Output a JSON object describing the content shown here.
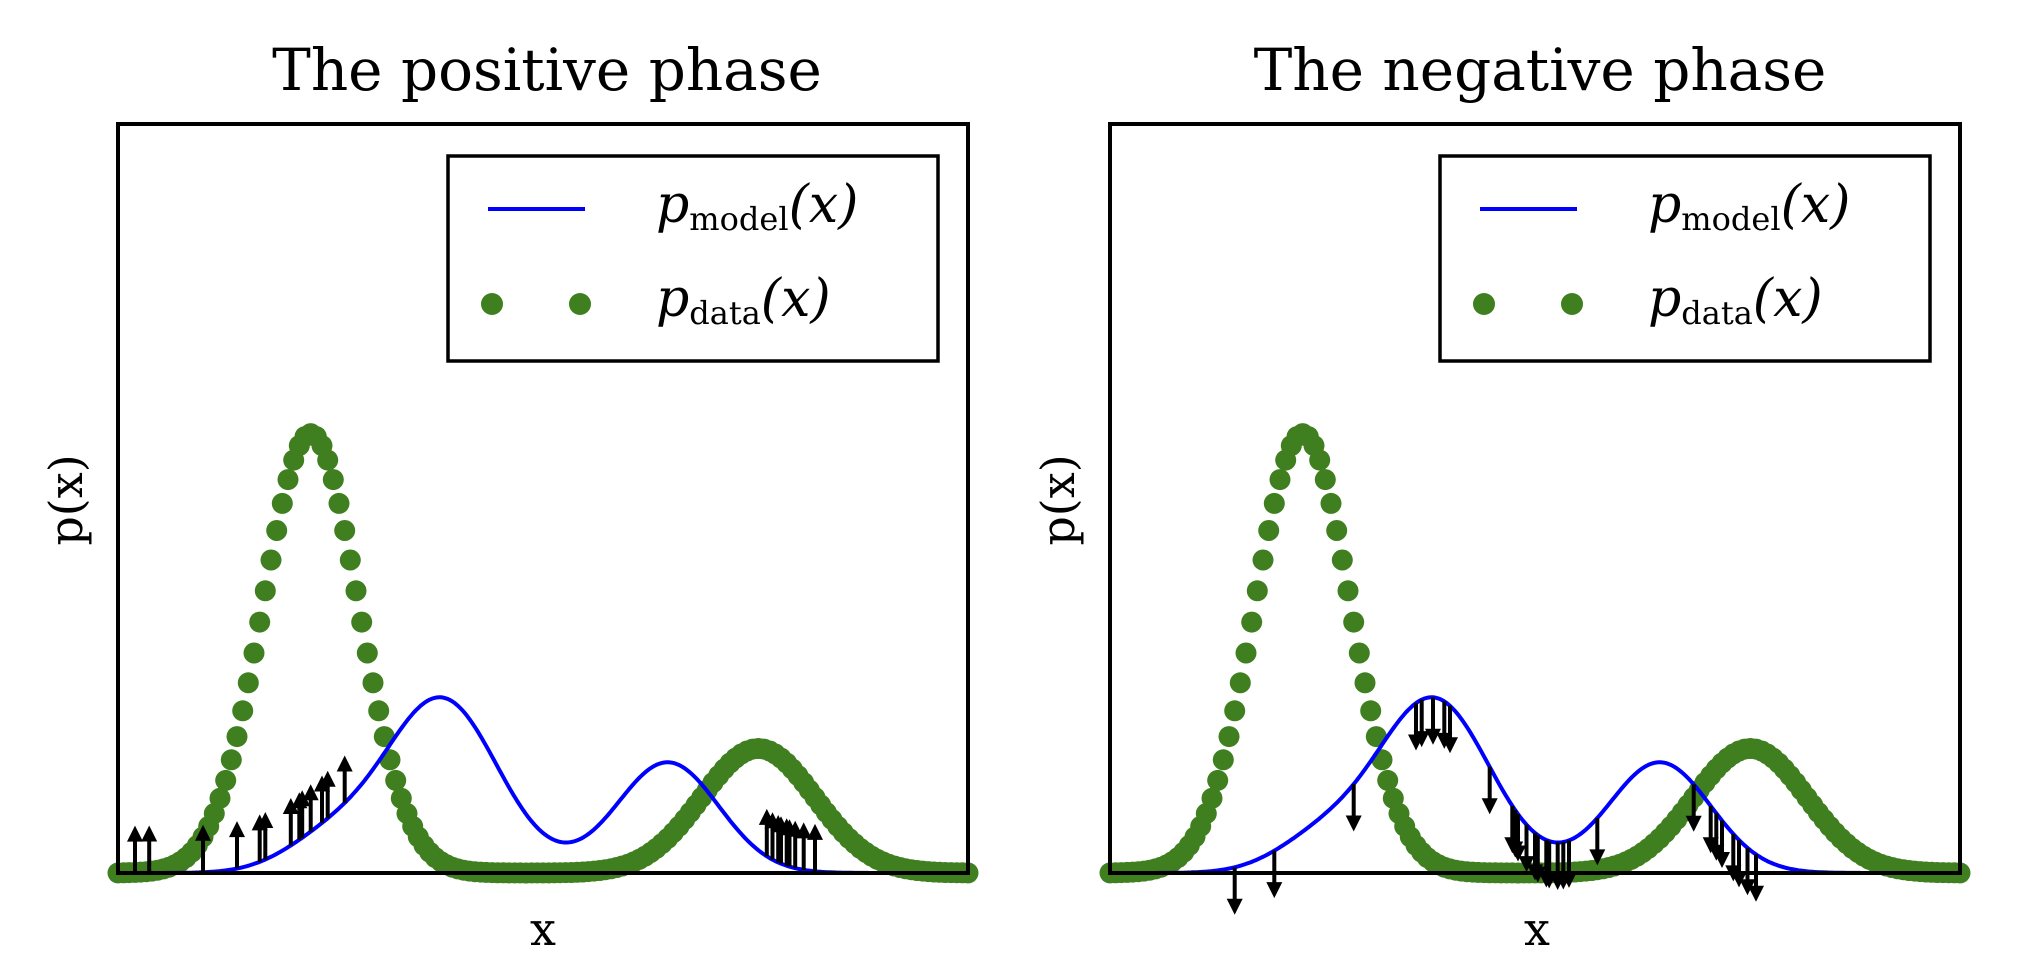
{
  "chart_data": [
    {
      "type": "line",
      "title": "The positive phase",
      "xlabel": "x",
      "ylabel": "p(x)",
      "xlim": [
        -4.5,
        10.5
      ],
      "ylim": [
        0,
        0.6
      ],
      "ticks_shown": false,
      "grid": false,
      "legend_position": "top-right",
      "legend": [
        {
          "style": "line",
          "color": "#0000ff",
          "label": "p",
          "sub": "model",
          "arg": "(x)"
        },
        {
          "style": "dots",
          "color": "#3f7f1f",
          "label": "p",
          "sub": "data",
          "arg": "(x)"
        }
      ],
      "series": [
        {
          "key": "p_model",
          "color": "#0000ff",
          "components": [
            {
              "weight": 0.35,
              "mean": 1.2,
              "sd": 1.0
            },
            {
              "weight": 0.2,
              "mean": 5.2,
              "sd": 0.9
            },
            {
              "weight": 0.05,
              "mean": -0.8,
              "sd": 0.8
            }
          ]
        },
        {
          "key": "p_data",
          "color": "#3f7f1f",
          "components": [
            {
              "weight": 0.75,
              "mean": -1.1,
              "sd": 0.85
            },
            {
              "weight": 0.25,
              "mean": 6.8,
              "sd": 1.0
            }
          ]
        }
      ],
      "arrows": {
        "direction": "up",
        "length": 0.038,
        "x": [
          -4.2,
          -3.95,
          -3.0,
          -2.4,
          -2.0,
          -1.9,
          -1.45,
          -1.3,
          -1.25,
          -1.1,
          -0.9,
          -0.8,
          -0.5,
          6.95,
          7.05,
          7.15,
          7.2,
          7.3,
          7.35,
          7.45,
          7.6,
          7.8
        ]
      }
    },
    {
      "type": "line",
      "title": "The negative phase",
      "xlabel": "x",
      "ylabel": "p(x)",
      "xlim": [
        -4.5,
        10.5
      ],
      "ylim": [
        0,
        0.6
      ],
      "ticks_shown": false,
      "grid": false,
      "legend_position": "top-right",
      "legend": [
        {
          "style": "line",
          "color": "#0000ff",
          "label": "p",
          "sub": "model",
          "arg": "(x)"
        },
        {
          "style": "dots",
          "color": "#3f7f1f",
          "label": "p",
          "sub": "data",
          "arg": "(x)"
        }
      ],
      "series": [
        {
          "key": "p_model",
          "color": "#0000ff",
          "components": [
            {
              "weight": 0.35,
              "mean": 1.2,
              "sd": 1.0
            },
            {
              "weight": 0.2,
              "mean": 5.2,
              "sd": 0.9
            },
            {
              "weight": 0.05,
              "mean": -0.8,
              "sd": 0.8
            }
          ]
        },
        {
          "key": "p_data",
          "color": "#3f7f1f",
          "components": [
            {
              "weight": 0.75,
              "mean": -1.1,
              "sd": 0.85
            },
            {
              "weight": 0.25,
              "mean": 6.8,
              "sd": 1.0
            }
          ]
        }
      ],
      "arrows": {
        "direction": "down",
        "length": 0.038,
        "x": [
          -2.3,
          -1.6,
          -0.2,
          0.9,
          1.0,
          1.2,
          1.4,
          1.5,
          2.2,
          2.6,
          2.65,
          2.7,
          2.85,
          3.0,
          3.05,
          3.2,
          3.25,
          3.4,
          3.5,
          3.6,
          4.1,
          5.8,
          6.1,
          6.2,
          6.3,
          6.5,
          6.6,
          6.75,
          6.9
        ]
      }
    }
  ]
}
